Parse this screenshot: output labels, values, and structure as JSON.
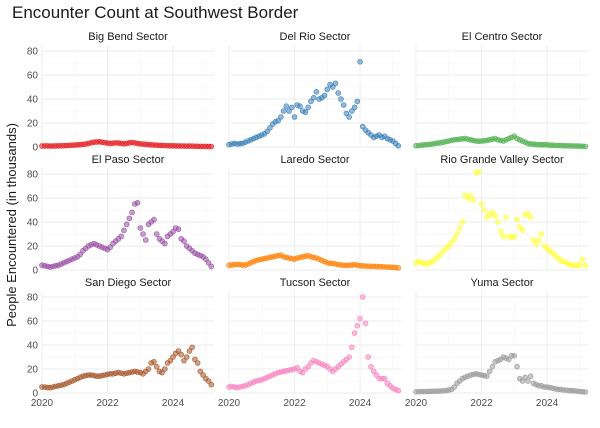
{
  "chart_data": {
    "type": "scatter",
    "title": "Encounter Count at Southwest Border",
    "xlabel": "",
    "ylabel": "People Encountered (in thousands)",
    "xlim": [
      2020.0,
      2025.25
    ],
    "ylim": [
      0,
      85
    ],
    "x_ticks": [
      2020,
      2022,
      2024
    ],
    "x_tick_labels": [
      "2020",
      "2022",
      "2024"
    ],
    "y_ticks": [
      0,
      20,
      40,
      60,
      80
    ],
    "y_tick_labels": [
      "0",
      "20",
      "40",
      "60",
      "80"
    ],
    "grid": true,
    "x_start": 2020.0,
    "x_step": 0.083333,
    "facets": [
      {
        "name": "Big Bend Sector",
        "color": "#E41A1C",
        "values": [
          0.8,
          0.9,
          0.9,
          0.8,
          0.8,
          0.9,
          1,
          1,
          1.1,
          1.2,
          1.3,
          1.5,
          1.6,
          1.8,
          2,
          2.2,
          2.5,
          3,
          3.5,
          4,
          4.2,
          4.4,
          4,
          3.6,
          3.3,
          3,
          3.2,
          3.4,
          3.3,
          3,
          2.7,
          3,
          3.5,
          3.8,
          3.4,
          3,
          2.6,
          2.5,
          2.2,
          2,
          1.8,
          1.6,
          1.5,
          1.4,
          1.3,
          1.2,
          1.1,
          1,
          1,
          0.9,
          0.9,
          0.8,
          0.8,
          0.7,
          0.8,
          0.7,
          0.6,
          0.6,
          0.5,
          0.5,
          0.5,
          0.4,
          0.4
        ]
      },
      {
        "name": "Del Rio Sector",
        "color": "#377EB8",
        "values": [
          2,
          2.5,
          3,
          2.5,
          2.8,
          3,
          4,
          5,
          6,
          7,
          8,
          9,
          10,
          11,
          13,
          16,
          19,
          21,
          22,
          25,
          30,
          34,
          30,
          33,
          25,
          35,
          34,
          30,
          29,
          33,
          38,
          41,
          46,
          40,
          41,
          43,
          48,
          52,
          50,
          53,
          45,
          40,
          35,
          28,
          25,
          30,
          33,
          38,
          71,
          17,
          14,
          12,
          10,
          8,
          9,
          10,
          8,
          9,
          7,
          6,
          5,
          3,
          1
        ]
      },
      {
        "name": "El Centro Sector",
        "color": "#4DAF4A",
        "values": [
          1,
          1.2,
          1.5,
          1.8,
          2,
          2.2,
          2.5,
          3,
          3.2,
          3.5,
          4,
          4.5,
          5,
          5.5,
          6,
          6.2,
          6.5,
          6.8,
          7,
          6.5,
          6,
          5.5,
          5,
          4.8,
          5,
          5.2,
          5.5,
          6,
          6.5,
          7,
          6,
          5.5,
          5,
          6,
          7,
          8,
          9,
          7,
          6,
          5,
          4,
          3,
          2.5,
          2.5,
          2,
          2,
          1.8,
          2,
          1.8,
          1.5,
          1.5,
          1.3,
          1.2,
          1.2,
          1.1,
          1,
          1,
          0.9,
          0.8,
          0.8,
          0.7,
          0.6,
          0.5
        ]
      },
      {
        "name": "El Paso Sector",
        "color": "#984EA3",
        "values": [
          4,
          3.5,
          3,
          2.5,
          3,
          3.5,
          4,
          5,
          6,
          7,
          8,
          9,
          10,
          11,
          13,
          16,
          18,
          20,
          21,
          22,
          21,
          20,
          19,
          18,
          17,
          19,
          22,
          24,
          26,
          28,
          33,
          38,
          43,
          48,
          55,
          56,
          35,
          30,
          25,
          38,
          40,
          42,
          30,
          26,
          24,
          22,
          28,
          30,
          32,
          35,
          34,
          26,
          24,
          20,
          18,
          16,
          14,
          13,
          12,
          11,
          9,
          6,
          3
        ]
      },
      {
        "name": "Laredo Sector",
        "color": "#FF7F00",
        "values": [
          4,
          4.2,
          4.5,
          4.8,
          4.5,
          4.2,
          4,
          5,
          6,
          7,
          8,
          8.5,
          9,
          9.5,
          10,
          10.5,
          11,
          11.5,
          12,
          12.5,
          11,
          10.5,
          10,
          9.5,
          9,
          10,
          10.5,
          11,
          11.5,
          12,
          11,
          10.5,
          10,
          9,
          8,
          7,
          6,
          5.5,
          5.5,
          5,
          4.5,
          4.2,
          4,
          3.8,
          4,
          4.2,
          4.5,
          4,
          3.5,
          3.5,
          3.2,
          3.2,
          3,
          3,
          3,
          2.8,
          2.8,
          2.6,
          2.5,
          2.4,
          2.2,
          2,
          1.8
        ]
      },
      {
        "name": "Rio Grande Valley Sector",
        "color": "#FFFF33",
        "values": [
          6,
          7,
          6,
          5.5,
          5,
          6,
          7,
          9,
          11,
          13,
          16,
          18,
          20,
          23,
          26,
          30,
          35,
          40,
          62,
          60,
          62,
          58,
          81,
          82,
          55,
          50,
          44,
          46,
          48,
          45,
          40,
          32,
          28,
          44,
          28,
          27,
          28,
          42,
          36,
          33,
          46,
          47,
          44,
          25,
          22,
          25,
          30,
          20,
          18,
          16,
          14,
          12,
          10,
          8,
          7,
          6,
          5,
          4,
          4,
          4,
          4,
          9,
          4
        ]
      },
      {
        "name": "San Diego Sector",
        "color": "#A65628",
        "values": [
          5,
          5,
          4.5,
          4.5,
          5,
          5.5,
          6,
          6.5,
          7,
          8,
          9,
          10,
          11,
          12,
          13,
          14,
          14.5,
          15,
          15,
          14.5,
          14,
          14,
          14.5,
          15,
          15.5,
          16,
          16,
          16.5,
          17,
          16.5,
          16,
          16.5,
          17,
          17.5,
          18,
          17.5,
          17,
          16,
          18,
          20,
          25,
          26,
          22,
          18,
          17,
          20,
          25,
          27,
          30,
          33,
          35,
          32,
          27,
          30,
          35,
          38,
          28,
          25,
          18,
          15,
          12,
          10,
          7
        ]
      },
      {
        "name": "Tucson Sector",
        "color": "#F781BF",
        "values": [
          5,
          5.5,
          5,
          4.5,
          5,
          5.5,
          6,
          7,
          8,
          9,
          10,
          10.5,
          11,
          12,
          13,
          14,
          15,
          16,
          17,
          17.5,
          18,
          18.5,
          19,
          19.5,
          20,
          21,
          18,
          17,
          20,
          22,
          25,
          27,
          26,
          25,
          24,
          23,
          22,
          20,
          18,
          20,
          22,
          24,
          26,
          28,
          30,
          38,
          50,
          56,
          62,
          80,
          58,
          30,
          22,
          18,
          15,
          12,
          12,
          12,
          8,
          6,
          4,
          3,
          2
        ]
      },
      {
        "name": "Yuma Sector",
        "color": "#999999",
        "values": [
          1,
          1.1,
          1.2,
          1.2,
          1.3,
          1.3,
          1.4,
          1.5,
          1.5,
          1.6,
          1.8,
          2,
          2.5,
          3,
          5,
          8,
          10,
          12,
          13,
          14,
          15,
          15.5,
          16,
          15.5,
          15,
          14.5,
          14,
          18,
          22,
          26,
          27,
          28,
          30,
          29,
          28,
          31,
          31,
          22,
          12,
          10,
          13,
          10,
          14,
          8,
          7,
          6,
          6,
          5,
          5,
          4.5,
          4,
          3.5,
          3,
          3,
          2.5,
          2.5,
          2,
          2,
          1.8,
          1.5,
          1.2,
          1,
          0.8
        ]
      }
    ]
  }
}
